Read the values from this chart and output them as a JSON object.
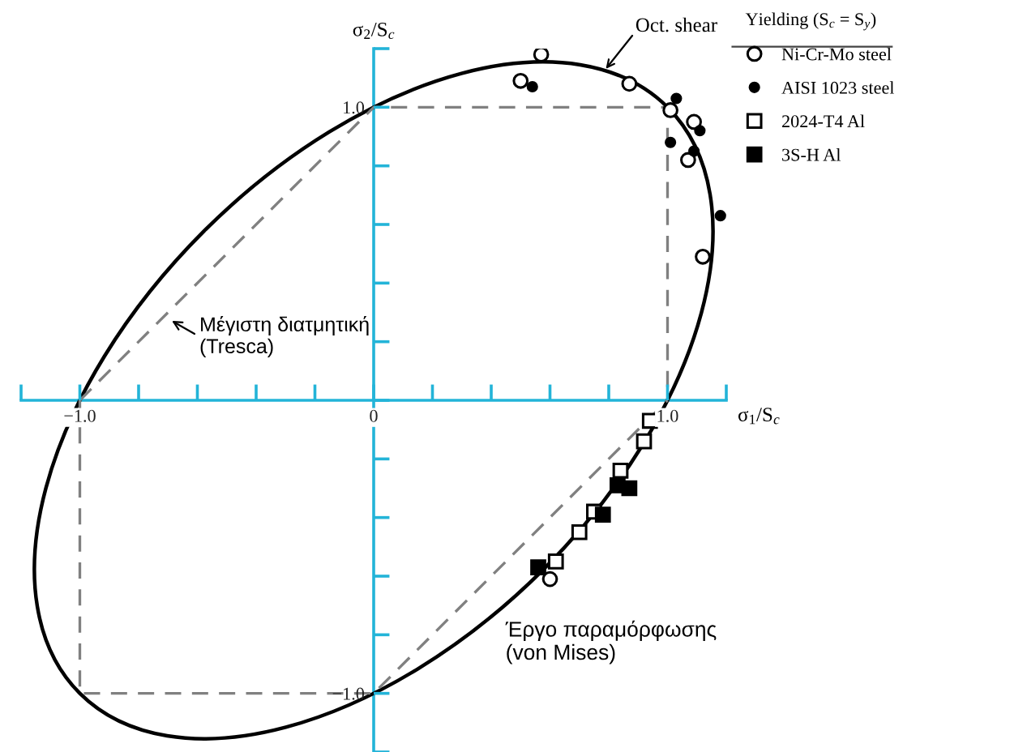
{
  "chart_data": {
    "type": "scatter",
    "xlabel": "σ$_{1}$/S$_{c}$",
    "ylabel": "σ$_{2}$/S$_{c}$",
    "legend_title": "Yielding (S$_{c}$ = S$_{y}$)",
    "legend": "top right",
    "xlim": [
      -1.2,
      1.2
    ],
    "ylim": [
      -1.2,
      1.2
    ],
    "xticks": [
      {
        "value": -1.2,
        "label": null
      },
      {
        "value": -1.0,
        "label": "−1.0"
      },
      {
        "value": -0.8,
        "label": null
      },
      {
        "value": -0.6,
        "label": null
      },
      {
        "value": -0.4,
        "label": null
      },
      {
        "value": -0.2,
        "label": null
      },
      0,
      {
        "value": 0.2,
        "label": null
      },
      {
        "value": 0.4,
        "label": null
      },
      {
        "value": 0.6,
        "label": null
      },
      {
        "value": 0.8,
        "label": null
      },
      {
        "value": 1.0,
        "label": "1.0"
      },
      {
        "value": 1.2,
        "label": null
      }
    ],
    "yticks": [
      {
        "value": -1.2,
        "label": null
      },
      {
        "value": -1.0,
        "label": "−1.0"
      },
      {
        "value": -0.8,
        "label": null
      },
      {
        "value": -0.6,
        "label": null
      },
      {
        "value": -0.4,
        "label": null
      },
      {
        "value": -0.2,
        "label": null
      },
      {
        "value": 0,
        "label": null
      },
      {
        "value": 0.2,
        "label": null
      },
      {
        "value": 0.4,
        "label": null
      },
      {
        "value": 0.6,
        "label": null
      },
      {
        "value": 0.8,
        "label": null
      },
      {
        "value": 1.0,
        "label": "1.0"
      },
      {
        "value": 1.2,
        "label": null
      }
    ],
    "series": [
      {
        "type": "line",
        "color": "#808080",
        "line_style": "dashed",
        "x": [
          -1,
          0,
          1,
          1
        ],
        "values": [
          0,
          1,
          1,
          0
        ]
      },
      {
        "type": "line",
        "color": "#808080",
        "line_style": "dashed",
        "x": [
          -1,
          -1,
          0,
          1
        ],
        "values": [
          0,
          -1,
          -1,
          0
        ]
      },
      {
        "name": "Ni-Cr-Mo steel",
        "color": "#ffffff",
        "marker": "circle",
        "x": [
          0.57,
          0.5,
          0.87,
          1.01,
          1.09,
          1.07,
          1.12,
          0.6
        ],
        "values": [
          1.18,
          1.09,
          1.08,
          0.99,
          0.95,
          0.82,
          0.49,
          -0.61
        ]
      },
      {
        "name": "AISI 1023 steel",
        "color": "#000000",
        "marker": "circle",
        "x": [
          0.54,
          1.03,
          1.11,
          1.01,
          1.09,
          1.18
        ],
        "values": [
          1.07,
          1.03,
          0.92,
          0.88,
          0.85,
          0.63
        ]
      },
      {
        "name": "2024-T4 Al",
        "color": "#ffffff",
        "marker": "square",
        "x": [
          0.94,
          0.92,
          0.84,
          0.75,
          0.7,
          0.62
        ],
        "values": [
          -0.07,
          -0.14,
          -0.24,
          -0.38,
          -0.45,
          -0.55
        ]
      },
      {
        "name": "3S-H Al",
        "color": "#000000",
        "marker": "square",
        "x": [
          0.83,
          0.87,
          0.78,
          0.56
        ],
        "values": [
          -0.29,
          -0.3,
          -0.39,
          -0.57
        ]
      }
    ],
    "annotations": [
      "Oct. shear",
      "Μέγιστη διατμητική\n(Tresca)",
      "Έργο παραμόρφωσης\n(von Mises)"
    ]
  }
}
